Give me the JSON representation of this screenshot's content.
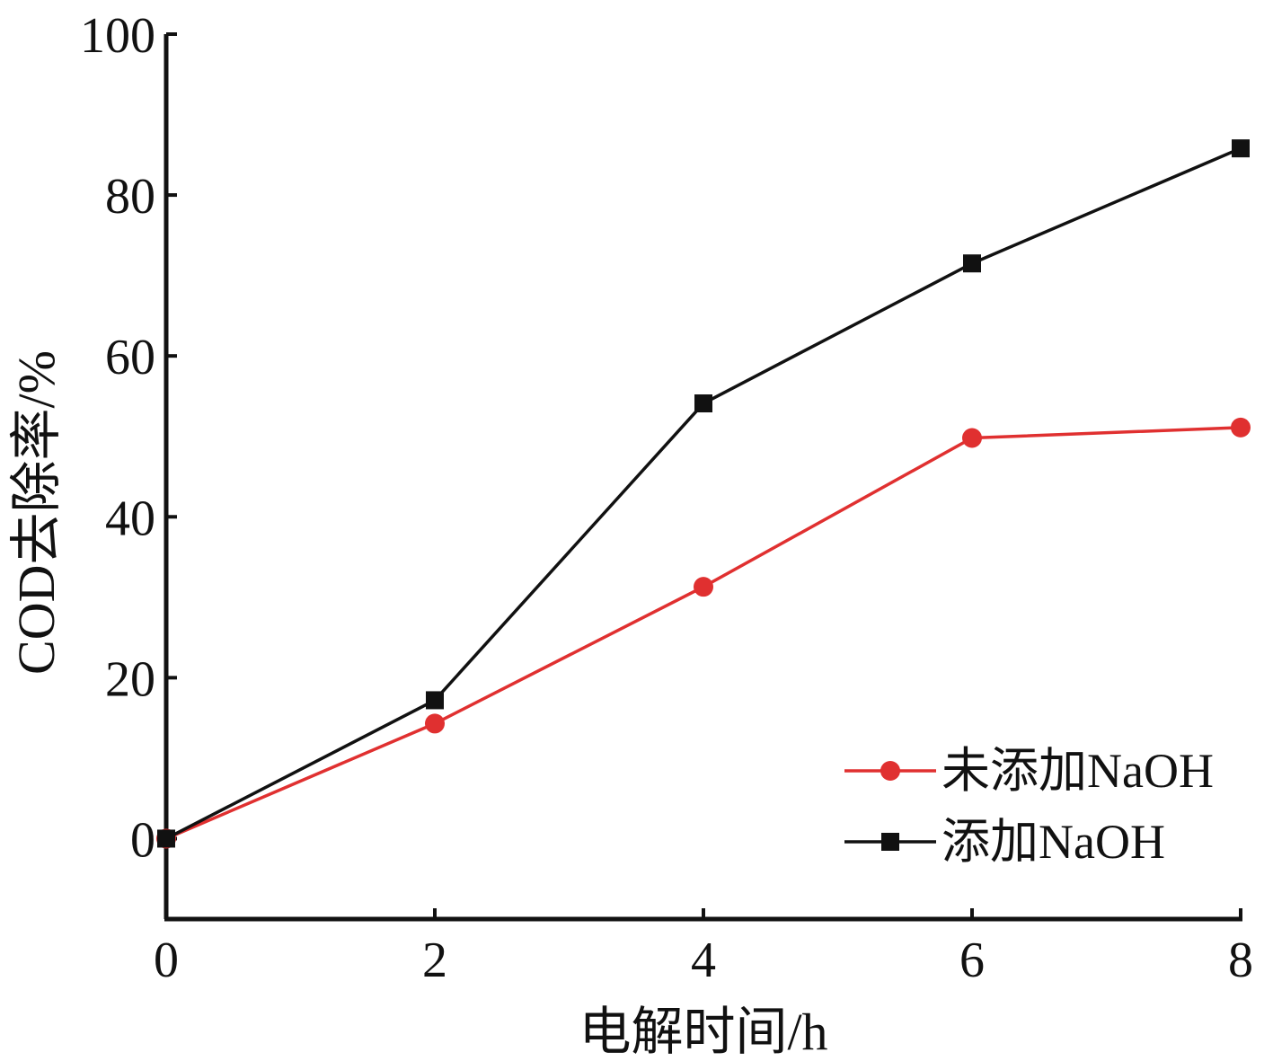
{
  "chart_data": {
    "type": "line",
    "title": "",
    "xlabel": "电解时间/h",
    "ylabel": "COD去除率/%",
    "xlim": [
      0,
      8
    ],
    "ylim": [
      -10,
      100
    ],
    "x_ticks": [
      0,
      2,
      4,
      6,
      8
    ],
    "y_ticks": [
      0,
      20,
      40,
      60,
      80,
      100
    ],
    "x_tick_labels": [
      "0",
      "2",
      "4",
      "6",
      "8"
    ],
    "y_tick_labels": [
      "0",
      "20",
      "40",
      "60",
      "80",
      "100"
    ],
    "grid": false,
    "legend_position": "bottom-right",
    "x": [
      0,
      2,
      4,
      6,
      8
    ],
    "series": [
      {
        "name": "未添加NaOH",
        "values": [
          0,
          14.3,
          31.3,
          49.8,
          51.1
        ],
        "color": "#e03030",
        "marker": "circle"
      },
      {
        "name": "添加NaOH",
        "values": [
          0,
          17.2,
          54.1,
          71.5,
          85.8
        ],
        "color": "#111111",
        "marker": "square"
      }
    ]
  }
}
